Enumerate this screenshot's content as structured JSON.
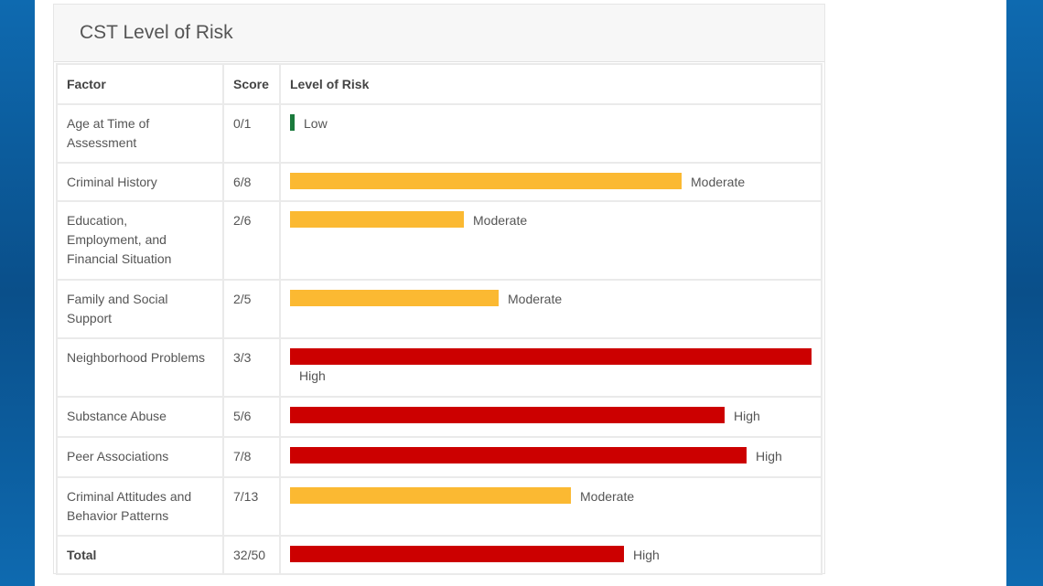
{
  "card": {
    "title": "CST Level of Risk"
  },
  "table": {
    "headers": {
      "factor": "Factor",
      "score": "Score",
      "risk": "Level of Risk"
    },
    "rows": [
      {
        "factor": [
          "Age at Time of",
          "Assessment"
        ],
        "score": "0/1",
        "risk": "Low",
        "fraction": 0.0,
        "color": "#1a7a3c",
        "label_below": false
      },
      {
        "factor": [
          "Criminal History"
        ],
        "score": "6/8",
        "risk": "Moderate",
        "fraction": 0.75,
        "color": "#fbb932",
        "label_below": false
      },
      {
        "factor": [
          "Education,",
          "Employment, and",
          "Financial Situation"
        ],
        "score": "2/6",
        "risk": "Moderate",
        "fraction": 0.333,
        "color": "#fbb932",
        "label_below": false
      },
      {
        "factor": [
          "Family and Social",
          "Support"
        ],
        "score": "2/5",
        "risk": "Moderate",
        "fraction": 0.4,
        "color": "#fbb932",
        "label_below": false
      },
      {
        "factor": [
          "Neighborhood Problems"
        ],
        "score": "3/3",
        "risk": "High",
        "fraction": 1.0,
        "color": "#cc0000",
        "label_below": true
      },
      {
        "factor": [
          "Substance Abuse"
        ],
        "score": "5/6",
        "risk": "High",
        "fraction": 0.833,
        "color": "#cc0000",
        "label_below": false
      },
      {
        "factor": [
          "Peer Associations"
        ],
        "score": "7/8",
        "risk": "High",
        "fraction": 0.875,
        "color": "#cc0000",
        "label_below": false
      },
      {
        "factor": [
          "Criminal Attitudes and",
          "Behavior Patterns"
        ],
        "score": "7/13",
        "risk": "Moderate",
        "fraction": 0.538,
        "color": "#fbb932",
        "label_below": false
      }
    ],
    "total": {
      "label": "Total",
      "score": "32/50",
      "risk": "High",
      "fraction": 0.64,
      "color": "#cc0000"
    }
  }
}
